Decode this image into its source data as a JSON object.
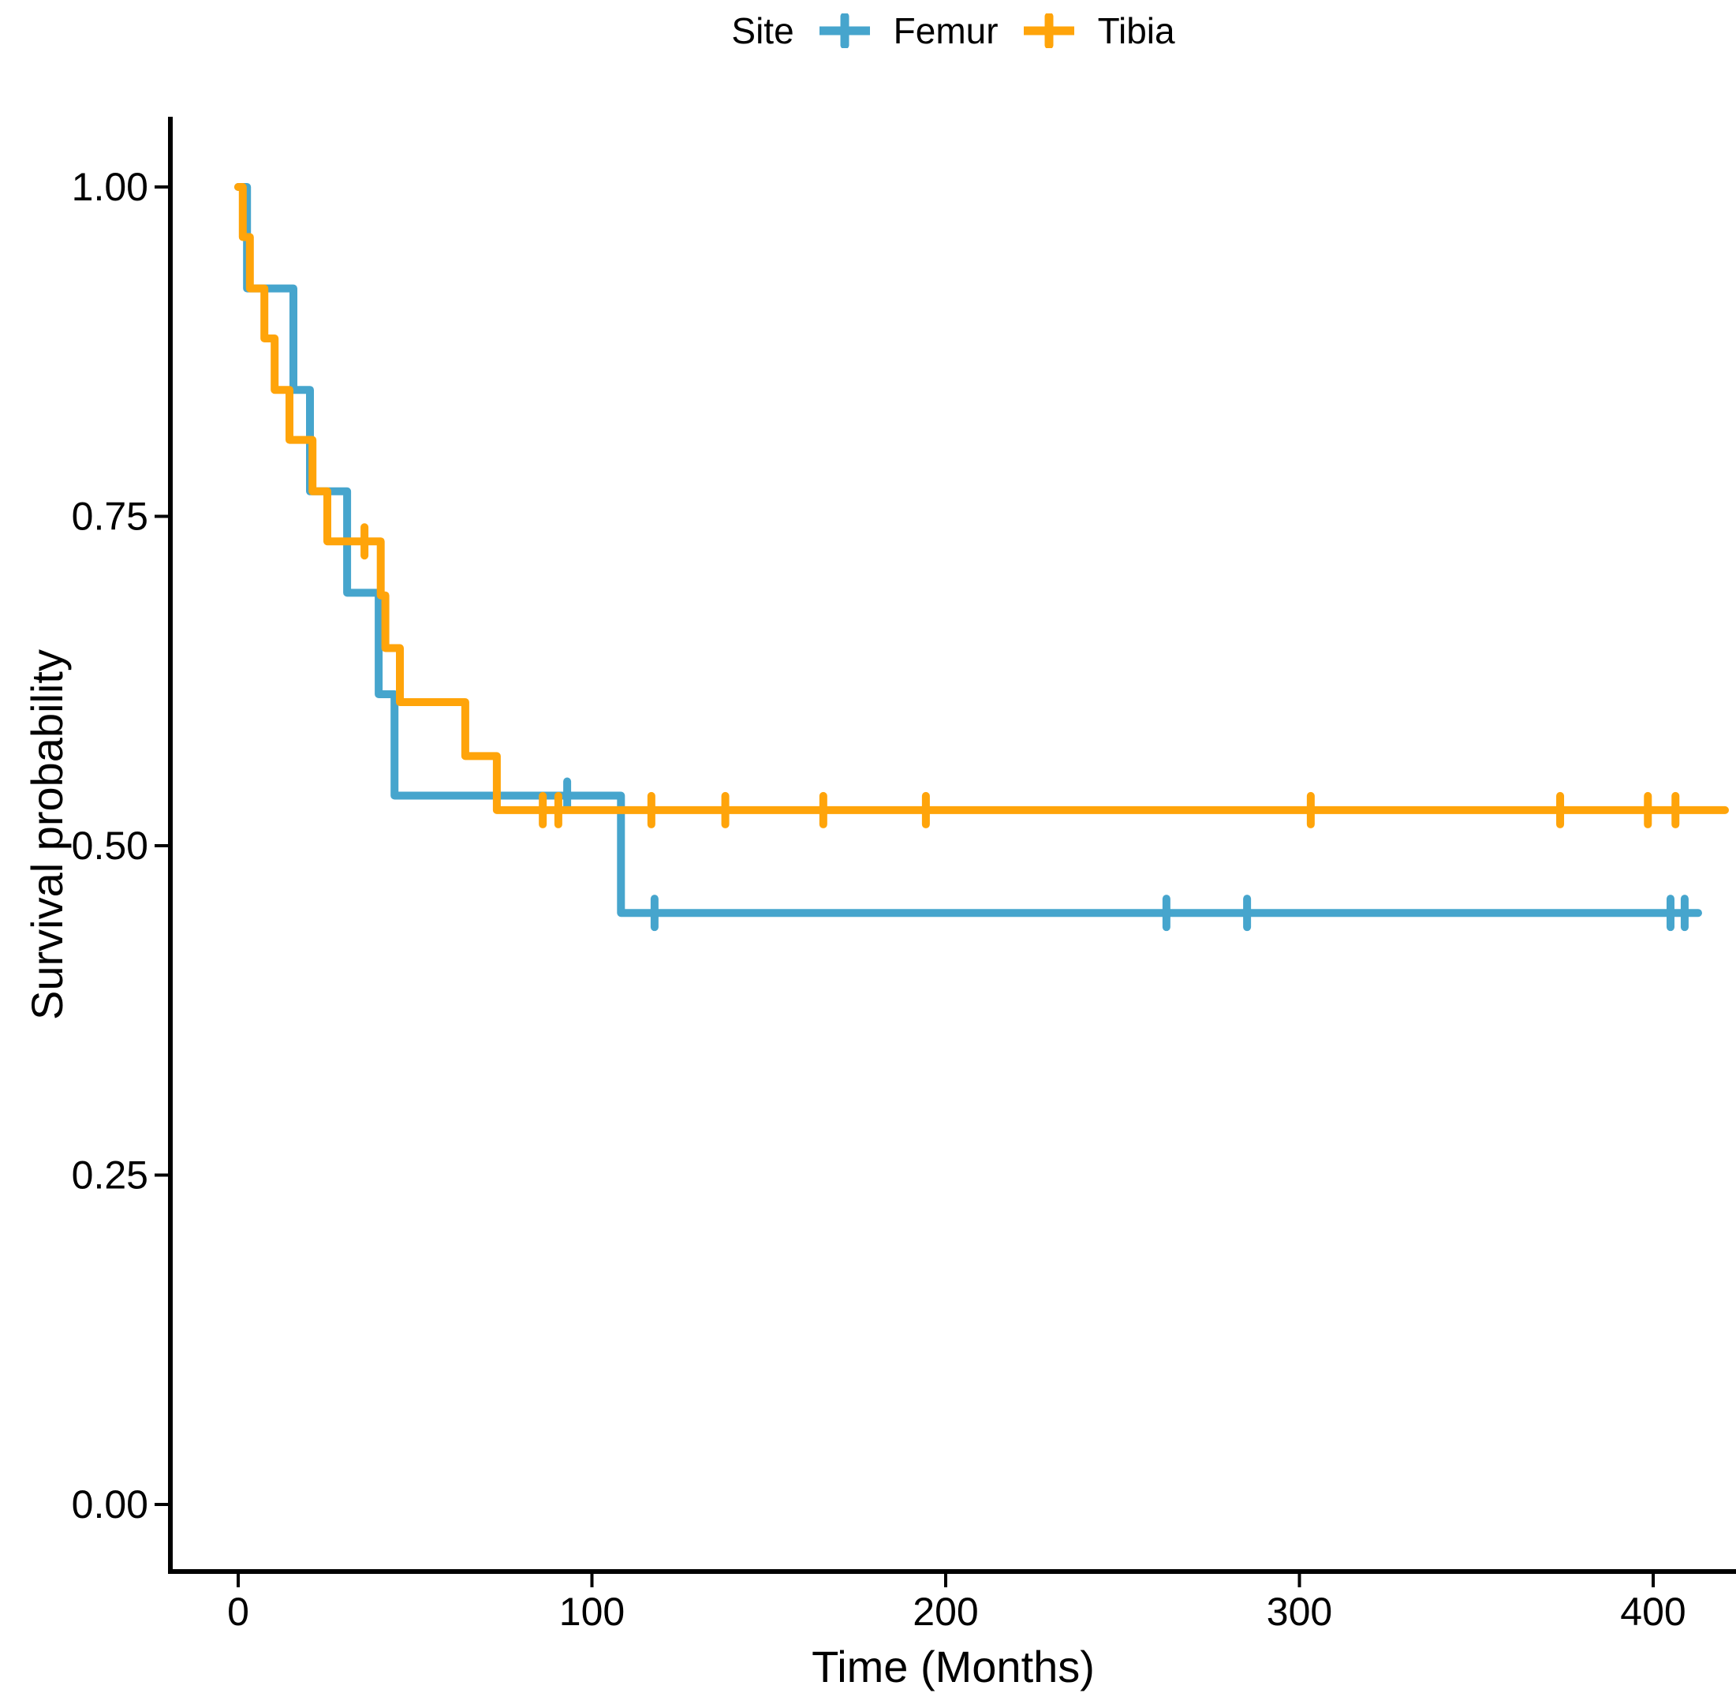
{
  "legend": {
    "title": "Site"
  },
  "colors": {
    "axis": "#000000",
    "text": "#000000",
    "background": "#ffffff",
    "femur_blue": "#46a5cd",
    "tibia_orange": "#ffa40a"
  },
  "chart_data": {
    "type": "line",
    "subtype": "kaplan-meier-step-curves-with-censor-marks",
    "title": "",
    "xlabel": "Time (Months)",
    "ylabel": "Survival probability",
    "xlim": [
      0,
      423
    ],
    "ylim": [
      0,
      1.05
    ],
    "grid": false,
    "legend_position": "top-center",
    "x_ticks": [
      {
        "v": 0,
        "label": "0"
      },
      {
        "v": 100,
        "label": "100"
      },
      {
        "v": 200,
        "label": "200"
      },
      {
        "v": 300,
        "label": "300"
      },
      {
        "v": 400,
        "label": "400"
      }
    ],
    "y_ticks": [
      {
        "v": 0.0,
        "label": "0.00"
      },
      {
        "v": 0.25,
        "label": "0.25"
      },
      {
        "v": 0.5,
        "label": "0.50"
      },
      {
        "v": 0.75,
        "label": "0.75"
      },
      {
        "v": 1.0,
        "label": "1.00"
      }
    ],
    "series": [
      {
        "name": "Femur",
        "color": "#46a5cd",
        "steps": [
          [
            0,
            1.0
          ],
          [
            2.5,
            0.923
          ],
          [
            15.6,
            0.846
          ],
          [
            20.3,
            0.769
          ],
          [
            30.8,
            0.692
          ],
          [
            39.7,
            0.615
          ],
          [
            44.2,
            0.538
          ],
          [
            108.2,
            0.449
          ],
          [
            412.7,
            0.449
          ]
        ],
        "censor_marks": [
          [
            93.0,
            0.538
          ],
          [
            117.7,
            0.449
          ],
          [
            262.4,
            0.449
          ],
          [
            285.2,
            0.449
          ],
          [
            404.9,
            0.449
          ],
          [
            408.9,
            0.449
          ]
        ]
      },
      {
        "name": "Tibia",
        "color": "#ffa40a",
        "steps": [
          [
            0,
            1.0
          ],
          [
            1.3,
            0.962
          ],
          [
            3.3,
            0.923
          ],
          [
            7.4,
            0.885
          ],
          [
            10.3,
            0.846
          ],
          [
            14.5,
            0.808
          ],
          [
            21.0,
            0.769
          ],
          [
            25.2,
            0.731
          ],
          [
            40.3,
            0.69
          ],
          [
            41.6,
            0.65
          ],
          [
            45.7,
            0.609
          ],
          [
            64.2,
            0.568
          ],
          [
            73.1,
            0.527
          ],
          [
            420.3,
            0.527
          ]
        ],
        "censor_marks": [
          [
            35.7,
            0.731
          ],
          [
            86.1,
            0.527
          ],
          [
            90.5,
            0.527
          ],
          [
            116.8,
            0.527
          ],
          [
            137.7,
            0.527
          ],
          [
            165.4,
            0.527
          ],
          [
            194.4,
            0.527
          ],
          [
            303.2,
            0.527
          ],
          [
            373.7,
            0.527
          ],
          [
            398.5,
            0.527
          ],
          [
            406.3,
            0.527
          ]
        ]
      }
    ]
  }
}
